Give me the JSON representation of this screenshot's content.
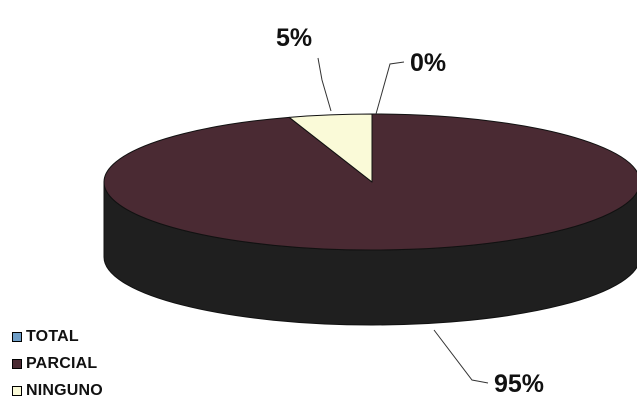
{
  "chart_data": {
    "type": "pie",
    "title": "",
    "three_d": true,
    "legend_position": "bottom-left",
    "categories": [
      "TOTAL",
      "PARCIAL",
      "NINGUNO"
    ],
    "values": [
      0,
      95,
      5
    ],
    "labels": [
      "0%",
      "95%",
      "5%"
    ],
    "colors": [
      "#6f9ec7",
      "#4a2a33",
      "#fafad8"
    ],
    "side_colors": [
      "#3d5f78",
      "#1f1f1f",
      "#d6d7a8"
    ],
    "outline_color": "#111111"
  }
}
